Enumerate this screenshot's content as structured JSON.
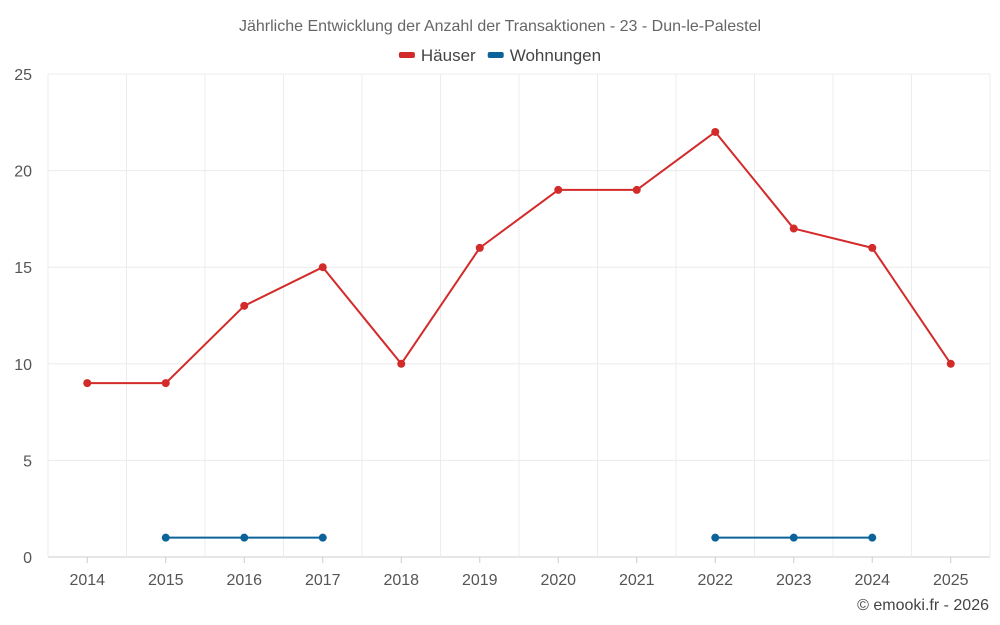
{
  "chart_data": {
    "type": "line",
    "title": "Jährliche Entwicklung der Anzahl der Transaktionen - 23 - Dun-le-Palestel",
    "categories": [
      "2014",
      "2015",
      "2016",
      "2017",
      "2018",
      "2019",
      "2020",
      "2021",
      "2022",
      "2023",
      "2024",
      "2025"
    ],
    "ylim": [
      0,
      25
    ],
    "yticks": [
      0,
      5,
      10,
      15,
      20,
      25
    ],
    "grid": true,
    "legend_position": "top-center",
    "series": [
      {
        "name": "Häuser",
        "color": "#d32a2a",
        "values": [
          9,
          9,
          13,
          15,
          10,
          16,
          19,
          19,
          22,
          17,
          16,
          10
        ]
      },
      {
        "name": "Wohnungen",
        "color": "#0b6399",
        "values": [
          null,
          1,
          1,
          1,
          null,
          null,
          null,
          null,
          1,
          1,
          1,
          null
        ]
      }
    ],
    "xlabel": "",
    "ylabel": ""
  },
  "credit": "© emooki.fr - 2026"
}
